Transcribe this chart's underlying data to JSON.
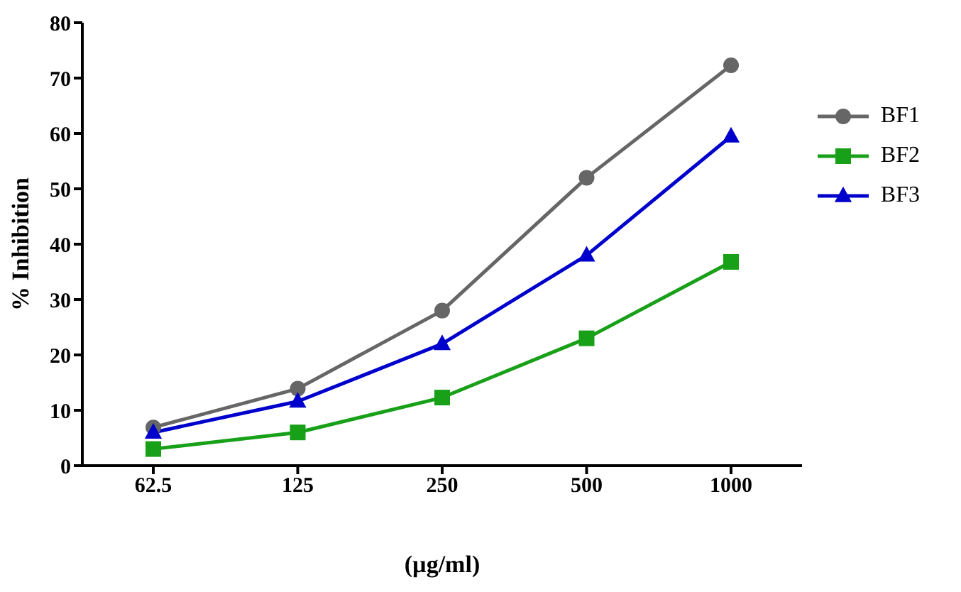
{
  "chart_data": {
    "type": "line",
    "xlabel": "(µg/ml)",
    "ylabel": "% Inhibition",
    "categories": [
      "62.5",
      "125",
      "250",
      "500",
      "1000"
    ],
    "ylim": [
      0,
      80
    ],
    "yticks": [
      0,
      10,
      20,
      30,
      40,
      50,
      60,
      70,
      80
    ],
    "legend": "right",
    "line_style": "solid",
    "series": [
      {
        "name": "BF1",
        "color": "#666666",
        "marker": "circle",
        "values": [
          6.9,
          13.9,
          28,
          52,
          72.3
        ]
      },
      {
        "name": "BF2",
        "color": "#18a018",
        "marker": "square",
        "values": [
          3,
          6,
          12.3,
          23,
          36.8
        ]
      },
      {
        "name": "BF3",
        "color": "#0000cc",
        "marker": "triangle",
        "values": [
          6,
          11.6,
          22,
          38,
          59.5
        ]
      }
    ]
  }
}
